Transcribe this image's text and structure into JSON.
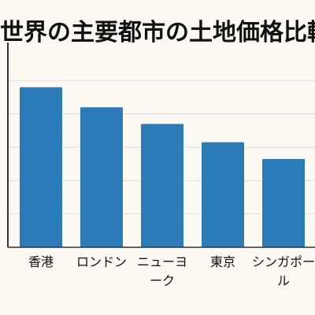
{
  "chart_data": {
    "type": "bar",
    "title": "世界の主要都市の土地価格比較",
    "categories": [
      "香港",
      "ロンドン",
      "ニューヨーク",
      "東京",
      "シンガポール"
    ],
    "category_lines": [
      [
        "香港"
      ],
      [
        "ロンドン"
      ],
      [
        "ニューヨ",
        "ーク"
      ],
      [
        "東京"
      ],
      [
        "シンガポー",
        "ル"
      ]
    ],
    "values": [
      96,
      84,
      74,
      63,
      53
    ],
    "ylim": [
      0,
      120
    ],
    "grid": true,
    "xlabel": "",
    "ylabel": "",
    "bar_color": "#2b7bb9",
    "grid_color": "#dddddd",
    "axis_color": "#333333"
  }
}
